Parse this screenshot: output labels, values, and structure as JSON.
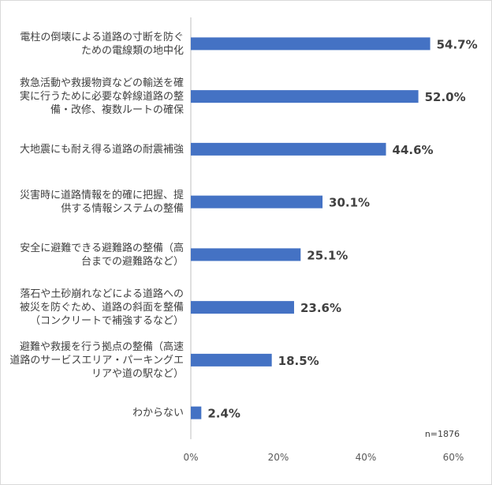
{
  "chart_data": {
    "type": "bar",
    "orientation": "horizontal",
    "categories": [
      [
        "電柱の倒壊による道路の寸断を防ぐ",
        "ための電線類の地中化"
      ],
      [
        "救急活動や救援物資などの輸送を確",
        "実に行うために必要な幹線道路の整",
        "備・改修、複数ルートの確保"
      ],
      [
        "大地震にも耐え得る道路の耐震補強"
      ],
      [
        "災害時に道路情報を的確に把握、提",
        "供する情報システムの整備"
      ],
      [
        "安全に避難できる避難路の整備（高",
        "台までの避難路など）"
      ],
      [
        "落石や土砂崩れなどによる道路への",
        "被災を防ぐため、道路の斜面を整備",
        "（コンクリートで補強するなど）"
      ],
      [
        "避難や救援を行う拠点の整備（高速",
        "道路のサービスエリア・パーキングエ",
        "リアや道の駅など）"
      ],
      [
        "わからない"
      ]
    ],
    "values": [
      54.7,
      52.0,
      44.6,
      30.1,
      25.1,
      23.6,
      18.5,
      2.4
    ],
    "value_labels": [
      "54.7%",
      "52.0%",
      "44.6%",
      "30.1%",
      "25.1%",
      "23.6%",
      "18.5%",
      "2.4%"
    ],
    "xlim": [
      0,
      60
    ],
    "x_ticks": [
      "0%",
      "20%",
      "40%",
      "60%"
    ],
    "bar_color": "#4472c4",
    "grid": false,
    "title": "",
    "xlabel": "",
    "ylabel": "",
    "note": "n=1876"
  }
}
